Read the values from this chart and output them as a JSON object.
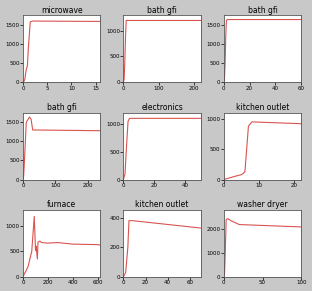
{
  "subplots": [
    {
      "title": "microwave",
      "xlim": [
        0,
        16
      ],
      "ylim": [
        0,
        1750
      ],
      "yticks": [
        0,
        500,
        1000,
        1500
      ],
      "xticks": [
        0,
        5,
        10,
        15
      ],
      "x": [
        0,
        0.2,
        0.4,
        0.5,
        0.7,
        0.9,
        1.1,
        1.5,
        2.0,
        16.0
      ],
      "y": [
        0,
        20,
        80,
        200,
        350,
        420,
        900,
        1580,
        1600,
        1590
      ]
    },
    {
      "title": "bath gfi",
      "xlim": [
        0,
        220
      ],
      "ylim": [
        0,
        1300
      ],
      "yticks": [
        0,
        500,
        1000
      ],
      "xticks": [
        0,
        100,
        200
      ],
      "x": [
        0,
        2,
        4,
        6,
        8,
        220
      ],
      "y": [
        0,
        50,
        400,
        900,
        1200,
        1200
      ]
    },
    {
      "title": "bath gfi",
      "xlim": [
        0,
        60
      ],
      "ylim": [
        0,
        1750
      ],
      "yticks": [
        0,
        500,
        1000,
        1500
      ],
      "xticks": [
        0,
        20,
        40,
        60
      ],
      "x": [
        0,
        0.5,
        1.0,
        1.5,
        2.0,
        3.0,
        60
      ],
      "y": [
        0,
        100,
        500,
        1200,
        1620,
        1640,
        1640
      ]
    },
    {
      "title": "bath gfi",
      "xlim": [
        0,
        240
      ],
      "ylim": [
        0,
        1750
      ],
      "yticks": [
        0,
        500,
        1000,
        1500
      ],
      "xticks": [
        0,
        100,
        200
      ],
      "x": [
        0,
        2,
        5,
        10,
        20,
        25,
        30,
        240
      ],
      "y": [
        0,
        100,
        600,
        1500,
        1640,
        1580,
        1300,
        1280
      ]
    },
    {
      "title": "electronics",
      "xlim": [
        0,
        50
      ],
      "ylim": [
        0,
        1200
      ],
      "yticks": [
        0,
        500,
        1000
      ],
      "xticks": [
        0,
        20,
        40
      ],
      "x": [
        0,
        1,
        2,
        3,
        4,
        50
      ],
      "y": [
        0,
        100,
        600,
        1050,
        1100,
        1100
      ]
    },
    {
      "title": "kitchen outlet",
      "xlim": [
        0,
        22
      ],
      "ylim": [
        0,
        1100
      ],
      "yticks": [
        0,
        500,
        1000
      ],
      "xticks": [
        0,
        10,
        20
      ],
      "x": [
        0,
        3,
        5.0,
        5.5,
        6.0,
        7.0,
        8.0,
        22
      ],
      "y": [
        0,
        50,
        80,
        100,
        130,
        880,
        950,
        920
      ]
    },
    {
      "title": "furnace",
      "xlim": [
        0,
        620
      ],
      "ylim": [
        0,
        1300
      ],
      "yticks": [
        0,
        500,
        1000
      ],
      "xticks": [
        0,
        200,
        400,
        600
      ],
      "x": [
        0,
        10,
        20,
        40,
        70,
        90,
        100,
        105,
        115,
        120,
        135,
        150,
        200,
        280,
        400,
        600,
        620
      ],
      "y": [
        0,
        60,
        100,
        200,
        500,
        1180,
        520,
        600,
        350,
        680,
        700,
        670,
        660,
        670,
        640,
        630,
        620
      ]
    },
    {
      "title": "kitchen outlet",
      "xlim": [
        0,
        70
      ],
      "ylim": [
        0,
        450
      ],
      "yticks": [
        0,
        200,
        400
      ],
      "xticks": [
        0,
        20,
        40,
        60
      ],
      "x": [
        0,
        2,
        4,
        5,
        8,
        70
      ],
      "y": [
        0,
        30,
        200,
        380,
        380,
        330
      ]
    },
    {
      "title": "washer dryer",
      "xlim": [
        0,
        100
      ],
      "ylim": [
        0,
        2800
      ],
      "yticks": [
        0,
        1000,
        2000
      ],
      "xticks": [
        0,
        50,
        100
      ],
      "x": [
        0,
        1,
        2,
        3,
        5,
        10,
        20,
        100
      ],
      "y": [
        0,
        200,
        1200,
        2400,
        2450,
        2350,
        2200,
        2100
      ]
    }
  ],
  "line_color": "#d9534f",
  "bg_color": "#ffffff",
  "fig_bg_color": "#c8c8c8"
}
